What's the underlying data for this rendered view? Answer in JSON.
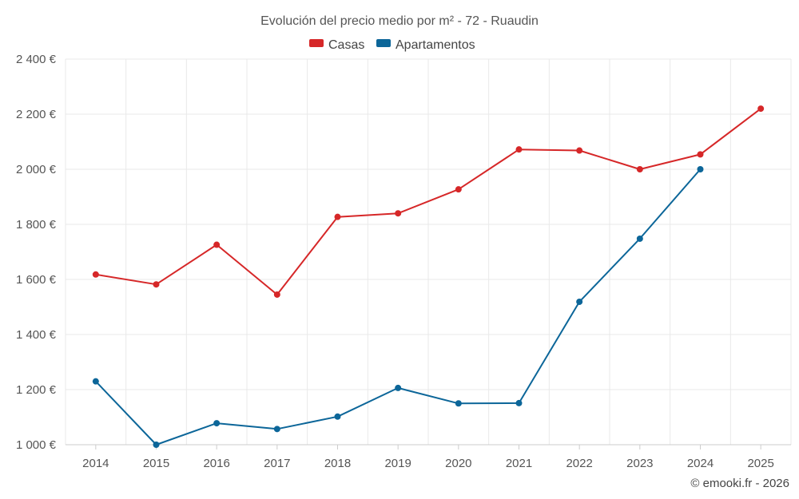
{
  "chart_data": {
    "type": "line",
    "title": "Evolución del precio medio por m² - 72 - Ruaudin",
    "categories": [
      "2014",
      "2015",
      "2016",
      "2017",
      "2018",
      "2019",
      "2020",
      "2021",
      "2022",
      "2023",
      "2024",
      "2025"
    ],
    "series": [
      {
        "name": "Casas",
        "color": "#d62728",
        "values": [
          1618,
          1582,
          1726,
          1545,
          1827,
          1840,
          1927,
          2072,
          2068,
          2000,
          2054,
          2220
        ]
      },
      {
        "name": "Apartamentos",
        "color": "#0c6699",
        "values": [
          1230,
          1000,
          1078,
          1057,
          1102,
          1206,
          1150,
          1151,
          1519,
          1748,
          2000,
          null
        ]
      }
    ],
    "y_ticks": [
      {
        "value": 1000,
        "label": "1 000 €"
      },
      {
        "value": 1200,
        "label": "1 200 €"
      },
      {
        "value": 1400,
        "label": "1 400 €"
      },
      {
        "value": 1600,
        "label": "1 600 €"
      },
      {
        "value": 1800,
        "label": "1 800 €"
      },
      {
        "value": 2000,
        "label": "2 000 €"
      },
      {
        "value": 2200,
        "label": "2 200 €"
      },
      {
        "value": 2400,
        "label": "2 400 €"
      }
    ],
    "ylim": [
      1000,
      2400
    ],
    "grid": true,
    "legend_position": "top-center",
    "credit": "© emooki.fr - 2026"
  }
}
